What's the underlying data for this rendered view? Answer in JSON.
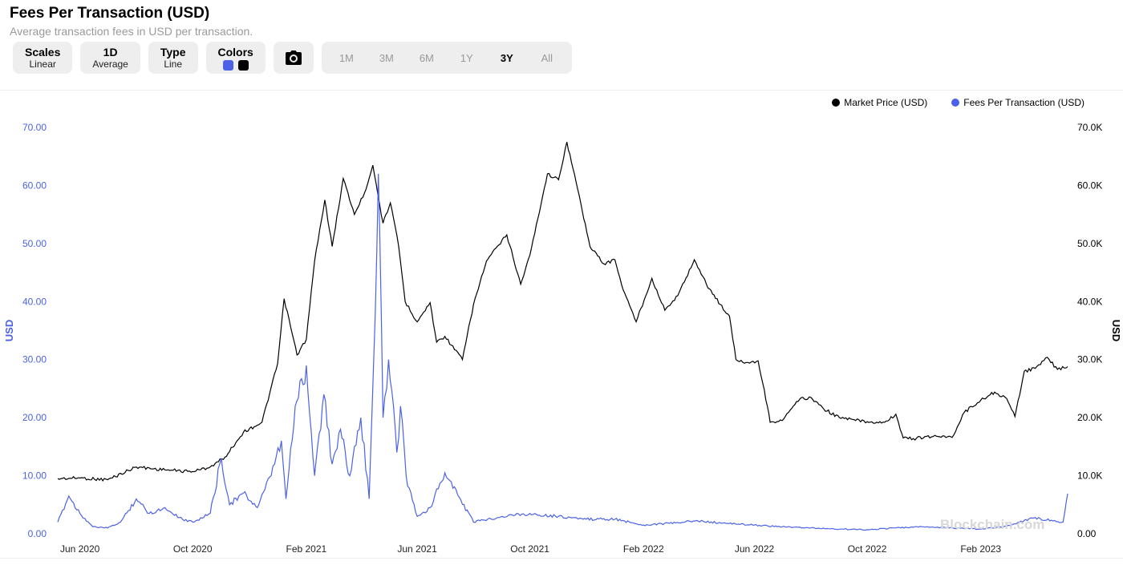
{
  "header": {
    "title": "Fees Per Transaction (USD)",
    "subtitle": "Average transaction fees in USD per transaction."
  },
  "toolbar": {
    "scales": {
      "label": "Scales",
      "value": "Linear"
    },
    "period": {
      "label": "1D",
      "value": "Average"
    },
    "type": {
      "label": "Type",
      "value": "Line"
    },
    "colors": {
      "label": "Colors",
      "swatch1": "#4b62e6",
      "swatch2": "#000000"
    },
    "camera_icon": "camera-icon",
    "ranges": [
      "1M",
      "3M",
      "6M",
      "1Y",
      "3Y",
      "All"
    ],
    "active_range": "3Y"
  },
  "watermark": "Blockchain.com",
  "chart_data": {
    "type": "line",
    "title": "",
    "xlabel": "",
    "ylabel": "USD",
    "y2label": "USD",
    "ylim": [
      0,
      70
    ],
    "y2lim": [
      0,
      70000
    ],
    "yticks": [
      "0.00",
      "10.00",
      "20.00",
      "30.00",
      "40.00",
      "50.00",
      "60.00",
      "70.00"
    ],
    "y2ticks": [
      "0.00",
      "10.0K",
      "20.0K",
      "30.0K",
      "40.0K",
      "50.0K",
      "60.0K",
      "70.0K"
    ],
    "xticks": [
      "Jun 2020",
      "Oct 2020",
      "Feb 2021",
      "Jun 2021",
      "Oct 2021",
      "Feb 2022",
      "Jun 2022",
      "Oct 2022",
      "Feb 2023"
    ],
    "xtick_dates": [
      "2020-06-01",
      "2020-10-01",
      "2021-02-01",
      "2021-06-01",
      "2021-10-01",
      "2022-02-01",
      "2022-06-01",
      "2022-10-01",
      "2023-02-01"
    ],
    "x_start": "2020-05-08",
    "x_end": "2023-05-06",
    "grid": false,
    "legend_position": "top-right",
    "series": [
      {
        "name": "Market Price (USD)",
        "axis": "right",
        "color": "#000000",
        "x": [
          "2020-05-08",
          "2020-06-01",
          "2020-07-01",
          "2020-08-01",
          "2020-09-01",
          "2020-10-01",
          "2020-10-20",
          "2020-11-05",
          "2020-11-25",
          "2020-12-15",
          "2021-01-01",
          "2021-01-08",
          "2021-01-22",
          "2021-02-01",
          "2021-02-10",
          "2021-02-21",
          "2021-03-01",
          "2021-03-13",
          "2021-03-25",
          "2021-04-05",
          "2021-04-14",
          "2021-04-25",
          "2021-05-03",
          "2021-05-12",
          "2021-05-19",
          "2021-06-01",
          "2021-06-15",
          "2021-06-22",
          "2021-07-01",
          "2021-07-20",
          "2021-08-01",
          "2021-08-15",
          "2021-09-06",
          "2021-09-21",
          "2021-10-01",
          "2021-10-20",
          "2021-11-01",
          "2021-11-10",
          "2021-11-25",
          "2021-12-05",
          "2021-12-20",
          "2022-01-01",
          "2022-01-10",
          "2022-01-24",
          "2022-02-10",
          "2022-02-24",
          "2022-03-10",
          "2022-03-28",
          "2022-04-10",
          "2022-04-25",
          "2022-05-05",
          "2022-05-12",
          "2022-05-25",
          "2022-06-05",
          "2022-06-15",
          "2022-06-18",
          "2022-07-01",
          "2022-07-20",
          "2022-08-01",
          "2022-08-15",
          "2022-09-01",
          "2022-09-15",
          "2022-10-01",
          "2022-10-20",
          "2022-11-01",
          "2022-11-09",
          "2022-11-20",
          "2022-12-15",
          "2023-01-01",
          "2023-01-14",
          "2023-02-01",
          "2023-02-16",
          "2023-03-01",
          "2023-03-10",
          "2023-03-20",
          "2023-04-01",
          "2023-04-14",
          "2023-04-25",
          "2023-05-06"
        ],
        "y": [
          9500,
          9600,
          9300,
          11500,
          11000,
          10700,
          11500,
          13200,
          17500,
          19200,
          29300,
          40500,
          30800,
          33500,
          47000,
          57500,
          49500,
          61200,
          55000,
          58700,
          63500,
          53500,
          57000,
          49500,
          40000,
          36500,
          39800,
          33000,
          34000,
          30000,
          39500,
          47000,
          51500,
          43000,
          48000,
          62000,
          61000,
          67500,
          57000,
          49500,
          46500,
          47200,
          42000,
          36500,
          44000,
          38500,
          41000,
          47200,
          43000,
          39500,
          37500,
          30000,
          29500,
          29800,
          22000,
          19200,
          19500,
          23200,
          23500,
          21500,
          20000,
          19700,
          19300,
          19200,
          20600,
          16500,
          16400,
          16800,
          16600,
          20900,
          23000,
          24400,
          23300,
          20200,
          28000,
          28500,
          30400,
          28300,
          28800
        ]
      },
      {
        "name": "Fees Per Transaction (USD)",
        "axis": "left",
        "color": "#4b62e6",
        "x": [
          "2020-05-08",
          "2020-05-20",
          "2020-06-01",
          "2020-06-15",
          "2020-07-01",
          "2020-07-15",
          "2020-08-01",
          "2020-08-15",
          "2020-09-01",
          "2020-09-20",
          "2020-10-01",
          "2020-10-20",
          "2020-11-01",
          "2020-11-10",
          "2020-11-25",
          "2020-12-10",
          "2020-12-25",
          "2021-01-05",
          "2021-01-10",
          "2021-01-20",
          "2021-02-01",
          "2021-02-10",
          "2021-02-20",
          "2021-03-01",
          "2021-03-10",
          "2021-03-20",
          "2021-04-01",
          "2021-04-10",
          "2021-04-15",
          "2021-04-20",
          "2021-04-25",
          "2021-05-01",
          "2021-05-10",
          "2021-05-14",
          "2021-05-20",
          "2021-06-01",
          "2021-06-15",
          "2021-07-01",
          "2021-08-01",
          "2021-09-01",
          "2021-10-01",
          "2021-11-01",
          "2021-12-01",
          "2022-01-01",
          "2022-02-01",
          "2022-03-01",
          "2022-04-01",
          "2022-05-01",
          "2022-06-01",
          "2022-07-01",
          "2022-08-01",
          "2022-09-01",
          "2022-10-01",
          "2022-11-01",
          "2022-12-01",
          "2023-01-01",
          "2023-02-01",
          "2023-03-01",
          "2023-04-01",
          "2023-04-20",
          "2023-05-01",
          "2023-05-06"
        ],
        "y": [
          2.0,
          6.5,
          3.5,
          1.2,
          1.0,
          2.0,
          6.0,
          3.5,
          4.5,
          2.5,
          2.0,
          3.5,
          13.0,
          5.0,
          7.0,
          4.5,
          10.0,
          16.0,
          6.0,
          22.0,
          29.0,
          10.0,
          24.0,
          12.0,
          18.0,
          10.0,
          20.0,
          6.0,
          30.0,
          62.0,
          20.0,
          30.0,
          14.0,
          22.0,
          10.0,
          3.0,
          4.5,
          10.5,
          2.0,
          3.0,
          3.5,
          3.0,
          2.5,
          2.5,
          1.5,
          1.8,
          2.2,
          1.8,
          1.5,
          1.2,
          1.0,
          0.8,
          0.7,
          1.0,
          1.2,
          1.0,
          0.8,
          1.3,
          2.8,
          2.2,
          2.0,
          6.9
        ]
      }
    ]
  }
}
